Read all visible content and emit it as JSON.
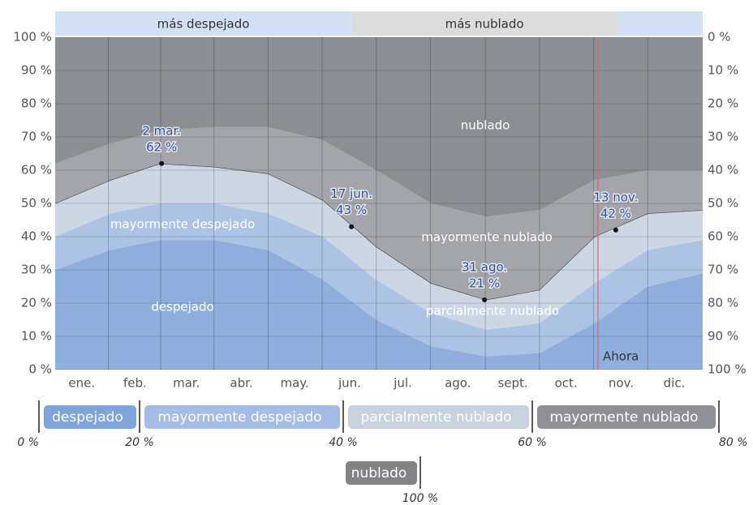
{
  "chart_data": {
    "type": "stacked_area",
    "x": [
      0,
      31,
      59,
      90,
      120,
      151,
      181,
      212,
      243,
      273,
      304,
      334,
      365
    ],
    "xlim": [
      0,
      365
    ],
    "xticks": [
      {
        "value": 15,
        "label": "ene."
      },
      {
        "value": 45,
        "label": "feb."
      },
      {
        "value": 74,
        "label": "mar."
      },
      {
        "value": 105,
        "label": "abr."
      },
      {
        "value": 135,
        "label": "may."
      },
      {
        "value": 166,
        "label": "jun."
      },
      {
        "value": 196,
        "label": "jul."
      },
      {
        "value": 227,
        "label": "ago."
      },
      {
        "value": 258,
        "label": "sept."
      },
      {
        "value": 288,
        "label": "oct."
      },
      {
        "value": 319,
        "label": "nov."
      },
      {
        "value": 349,
        "label": "dic."
      }
    ],
    "ylim": [
      0,
      100
    ],
    "yticks": [
      {
        "value": 0,
        "label": "0 %"
      },
      {
        "value": 10,
        "label": "10 %"
      },
      {
        "value": 20,
        "label": "20 %"
      },
      {
        "value": 30,
        "label": "30 %"
      },
      {
        "value": 40,
        "label": "40 %"
      },
      {
        "value": 50,
        "label": "50 %"
      },
      {
        "value": 60,
        "label": "60 %"
      },
      {
        "value": 70,
        "label": "70 %"
      },
      {
        "value": 80,
        "label": "80 %"
      },
      {
        "value": 90,
        "label": "90 %"
      },
      {
        "value": 100,
        "label": "100 %"
      }
    ],
    "y2lim": [
      100,
      0
    ],
    "y2ticks": [
      {
        "value": 0,
        "label": "0 %"
      },
      {
        "value": 10,
        "label": "10 %"
      },
      {
        "value": 20,
        "label": "20 %"
      },
      {
        "value": 30,
        "label": "30 %"
      },
      {
        "value": 40,
        "label": "40 %"
      },
      {
        "value": 50,
        "label": "50 %"
      },
      {
        "value": 60,
        "label": "60 %"
      },
      {
        "value": 70,
        "label": "70 %"
      },
      {
        "value": 80,
        "label": "80 %"
      },
      {
        "value": 90,
        "label": "90 %"
      },
      {
        "value": 100,
        "label": "100 %"
      }
    ],
    "grid": true,
    "series": [
      {
        "name": "despejado",
        "color": "#8eaedd",
        "values": [
          30,
          36,
          39,
          39,
          36,
          27,
          15,
          7,
          4,
          5,
          14,
          25,
          29
        ]
      },
      {
        "name": "mayormente despejado",
        "color": "#adc3e6",
        "values": [
          10,
          11,
          11,
          11,
          11,
          13,
          12,
          10,
          8,
          9,
          12,
          11,
          10
        ]
      },
      {
        "name": "parcialmente nublado",
        "color": "#cdd6e3",
        "values": [
          10,
          10,
          12,
          11,
          12,
          11,
          10,
          9,
          9,
          10,
          14,
          11,
          9
        ]
      },
      {
        "name": "mayormente nublado",
        "color": "#a3a5aa",
        "values": [
          12,
          11,
          10,
          12,
          14,
          18,
          23,
          24,
          25,
          24,
          17,
          13,
          12
        ]
      },
      {
        "name": "nublado",
        "color": "#8b8e93",
        "values": [
          38,
          32,
          28,
          27,
          27,
          31,
          40,
          50,
          54,
          52,
          43,
          40,
          40
        ]
      }
    ],
    "bands": [
      {
        "label": "más despejado",
        "start": 0,
        "end": 167,
        "color": "#d3e0f3"
      },
      {
        "label": "más nublado",
        "start": 167,
        "end": 317,
        "color": "#dcdcdc"
      },
      {
        "start": 317,
        "end": 365,
        "color": "#d3e0f3"
      }
    ],
    "now": {
      "label": "Ahora",
      "x": 306,
      "color": "#e06070"
    },
    "annotations": [
      {
        "date": "2 mar.",
        "x": 60,
        "value": 62,
        "value_label": "62 %"
      },
      {
        "date": "17 jun.",
        "x": 167,
        "value": 43,
        "value_label": "43 %"
      },
      {
        "date": "31 ago.",
        "x": 242,
        "value": 21,
        "value_label": "21 %"
      },
      {
        "date": "13 nov.",
        "x": 316,
        "value": 42,
        "value_label": "42 %"
      }
    ],
    "scale_colors": [
      "#7fa4dc",
      "#a4bde6",
      "#c8d2df",
      "#8e9096",
      "#818387"
    ],
    "scale_ticks": [
      {
        "value": 0,
        "label": "0 %"
      },
      {
        "value": 20,
        "label": "20 %"
      },
      {
        "value": 40,
        "label": "40 %"
      },
      {
        "value": 60,
        "label": "60 %"
      },
      {
        "value": 80,
        "label": "80 %"
      },
      {
        "value": 100,
        "label": "100 %"
      }
    ]
  }
}
